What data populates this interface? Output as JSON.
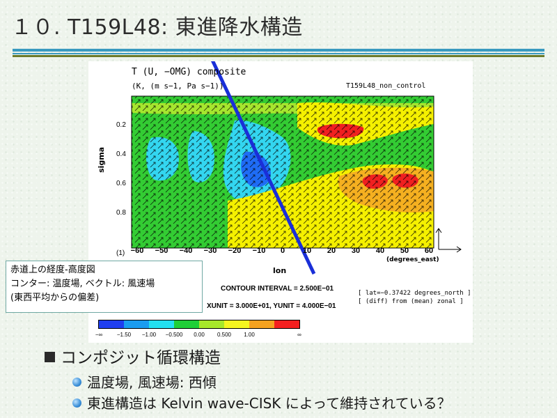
{
  "slide": {
    "title": "１０. T159L48: 東進降水構造"
  },
  "figure": {
    "title": "T (U, −OMG) composite",
    "units": "(K, (m s−1, Pa s−1))",
    "experiment": "T159L48_non_control",
    "ylabel": "sigma",
    "yticks": [
      "0.2",
      "0.4",
      "0.6",
      "0.8",
      "(1)"
    ],
    "xticks": [
      "−60",
      "−50",
      "−40",
      "−30",
      "−20",
      "−10",
      "0",
      "10",
      "20",
      "30",
      "40",
      "50",
      "60"
    ],
    "xlabel": "lon",
    "xunit_label": "(degrees_east)",
    "contour_interval": "CONTOUR INTERVAL = 2.500E−01",
    "lat_info": "[ lat=−0.37422 degrees_north ]",
    "diff_info": "[ (diff) from (mean) zonal ]",
    "xy_unit": "XUNIT = 3.000E+01, YUNIT = 4.000E−01",
    "colorbar_labels": [
      "−∞",
      "−1.50",
      "−1.00",
      "−0.500",
      "0.00",
      "0.500",
      "1.00",
      "∞"
    ],
    "colorbar_colors": [
      "#1f3ef0",
      "#1a9cf0",
      "#22e0f0",
      "#1fcf37",
      "#a7e82a",
      "#f5f51f",
      "#f5a21f",
      "#f51f1f"
    ],
    "field_colors": {
      "green": "#33cc33",
      "cyan": "#33d6f0",
      "blue": "#1f6cf5",
      "yellow": "#f5f000",
      "orange": "#f5b020",
      "red": "#f02020",
      "lightgreen": "#a6e62e"
    }
  },
  "note": {
    "line1": "赤道上の経度-高度図",
    "line2": "コンター: 温度場, ベクトル: 風速場",
    "line3": "(東西平均からの偏差)"
  },
  "section": {
    "heading": "コンポジット循環構造",
    "bullets": [
      "温度場, 風速場: 西傾",
      "東進構造は Kelvin wave-CISK によって維持されている？"
    ]
  },
  "accent_colors": {
    "rule_blue": "#3a9ac0",
    "rule_olive": "#6b7a2a",
    "arrow_blue": "#1a2fd8"
  }
}
